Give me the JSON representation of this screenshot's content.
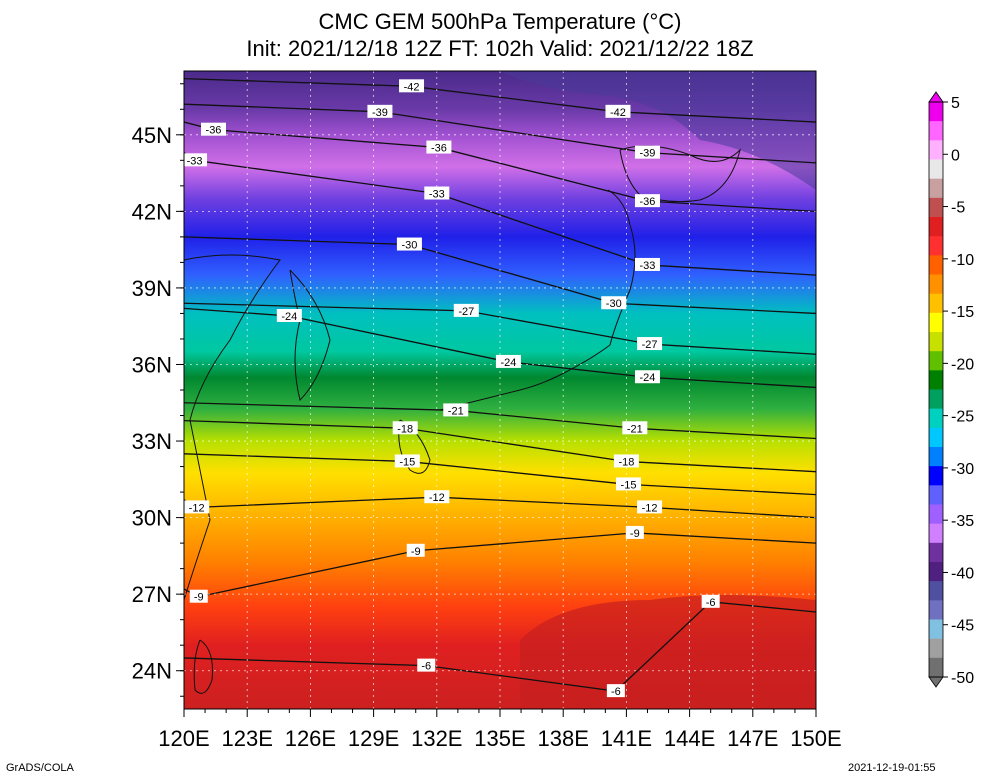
{
  "title": {
    "line1": "CMC GEM 500hPa Temperature (°C)",
    "line2": "Init: 2021/12/18 12Z  FT: 102h  Valid: 2021/12/22 18Z"
  },
  "axes": {
    "lon_labels": [
      "120E",
      "123E",
      "126E",
      "129E",
      "132E",
      "135E",
      "138E",
      "141E",
      "144E",
      "147E",
      "150E"
    ],
    "lat_labels": [
      "45N",
      "42N",
      "39N",
      "36N",
      "33N",
      "30N",
      "27N",
      "24N"
    ],
    "lon_range": [
      120,
      150
    ],
    "lat_range": [
      22.5,
      47.5
    ]
  },
  "colorbar": {
    "labels": [
      "5",
      "0",
      "-5",
      "-10",
      "-15",
      "-20",
      "-25",
      "-30",
      "-35",
      "-40",
      "-45",
      "-50"
    ],
    "range": [
      -50,
      5
    ],
    "colors": [
      "#ee00ee",
      "#ff66ff",
      "#ffb0ff",
      "#e8e8e8",
      "#c8a0a0",
      "#c05050",
      "#e02020",
      "#ff3030",
      "#ff6000",
      "#ff9000",
      "#ffc000",
      "#ffff00",
      "#c8e000",
      "#60c000",
      "#008000",
      "#00a060",
      "#00d0c0",
      "#00c8ff",
      "#0080ff",
      "#0000ff",
      "#6060ff",
      "#a060ff",
      "#d080ff",
      "#7030a0",
      "#502080",
      "#5050a0",
      "#7070c0",
      "#80c0e0",
      "#a0a0a0",
      "#707070"
    ]
  },
  "contour_labels": [
    {
      "text": "-42",
      "lon": 130.8,
      "lat": 46.9
    },
    {
      "text": "-42",
      "lon": 140.6,
      "lat": 45.9
    },
    {
      "text": "-39",
      "lon": 129.3,
      "lat": 45.9
    },
    {
      "text": "-36",
      "lon": 121.4,
      "lat": 45.2
    },
    {
      "text": "-36",
      "lon": 132.1,
      "lat": 44.5
    },
    {
      "text": "-36",
      "lon": 142.0,
      "lat": 42.4
    },
    {
      "text": "-39",
      "lon": 142.0,
      "lat": 44.3
    },
    {
      "text": "-33",
      "lon": 120.5,
      "lat": 44.0
    },
    {
      "text": "-33",
      "lon": 132.0,
      "lat": 42.7
    },
    {
      "text": "-33",
      "lon": 142.0,
      "lat": 39.9
    },
    {
      "text": "-30",
      "lon": 130.7,
      "lat": 40.7
    },
    {
      "text": "-30",
      "lon": 140.4,
      "lat": 38.4
    },
    {
      "text": "-27",
      "lon": 133.4,
      "lat": 38.1
    },
    {
      "text": "-27",
      "lon": 142.1,
      "lat": 36.8
    },
    {
      "text": "-24",
      "lon": 125.0,
      "lat": 37.9
    },
    {
      "text": "-24",
      "lon": 135.4,
      "lat": 36.1
    },
    {
      "text": "-24",
      "lon": 142.0,
      "lat": 35.5
    },
    {
      "text": "-21",
      "lon": 132.9,
      "lat": 34.2
    },
    {
      "text": "-21",
      "lon": 141.4,
      "lat": 33.5
    },
    {
      "text": "-18",
      "lon": 130.5,
      "lat": 33.5
    },
    {
      "text": "-18",
      "lon": 141.0,
      "lat": 32.2
    },
    {
      "text": "-15",
      "lon": 130.6,
      "lat": 32.2
    },
    {
      "text": "-15",
      "lon": 141.1,
      "lat": 31.3
    },
    {
      "text": "-12",
      "lon": 132.0,
      "lat": 30.8
    },
    {
      "text": "-12",
      "lon": 120.6,
      "lat": 30.4
    },
    {
      "text": "-12",
      "lon": 142.1,
      "lat": 30.4
    },
    {
      "text": "-9",
      "lon": 131.0,
      "lat": 28.7
    },
    {
      "text": "-9",
      "lon": 141.4,
      "lat": 29.4
    },
    {
      "text": "-9",
      "lon": 120.7,
      "lat": 26.9
    },
    {
      "text": "-6",
      "lon": 145.0,
      "lat": 26.7
    },
    {
      "text": "-6",
      "lon": 131.5,
      "lat": 24.2
    },
    {
      "text": "-6",
      "lon": 140.5,
      "lat": 23.2
    }
  ],
  "credits": {
    "left": "GrADS/COLA",
    "right": "2021-12-19-01:55"
  }
}
